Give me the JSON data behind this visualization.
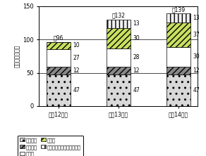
{
  "title": "",
  "ylabel": "地方公共団体数",
  "categories": [
    "平成12年度",
    "平成13年度",
    "平成14年度"
  ],
  "totals": [
    "計96",
    "計132",
    "計139"
  ],
  "segment_order": [
    "都道府県",
    "指定都市",
    "中核市",
    "特例市",
    "その他の騒音規制法政令市"
  ],
  "segments": {
    "都道府県": [
      47,
      47,
      47
    ],
    "指定都市": [
      12,
      12,
      12
    ],
    "中核市": [
      27,
      28,
      30
    ],
    "特例市": [
      10,
      30,
      37
    ],
    "その他の騒音規制法政令市": [
      0,
      13,
      13
    ]
  },
  "facecolors": {
    "都道府県": "#d8d8d8",
    "指定都市": "#888888",
    "中核市": "#ffffff",
    "特例市": "#c8e060",
    "その他の騒音規制法政令市": "#f0f0f0"
  },
  "hatches": {
    "都道府県": "..",
    "指定都市": "////",
    "中核市": "===",
    "特例市": "////",
    "その他の騒音規制法政令市": "|||"
  },
  "hatch_colors": {
    "都道府県": "#606060",
    "指定都市": "#404040",
    "中核市": "#228822",
    "特例市": "#88bb00",
    "その他の騒音規制法政令市": "#c0c0c0"
  },
  "ylim": [
    0,
    150
  ],
  "yticks": [
    0,
    50,
    100,
    150
  ],
  "bar_width": 0.4,
  "background_color": "#ffffff",
  "legend_order": [
    "都道府県",
    "指定都市",
    "中核市",
    "特例市",
    "その他の騒音規制法政令市"
  ]
}
